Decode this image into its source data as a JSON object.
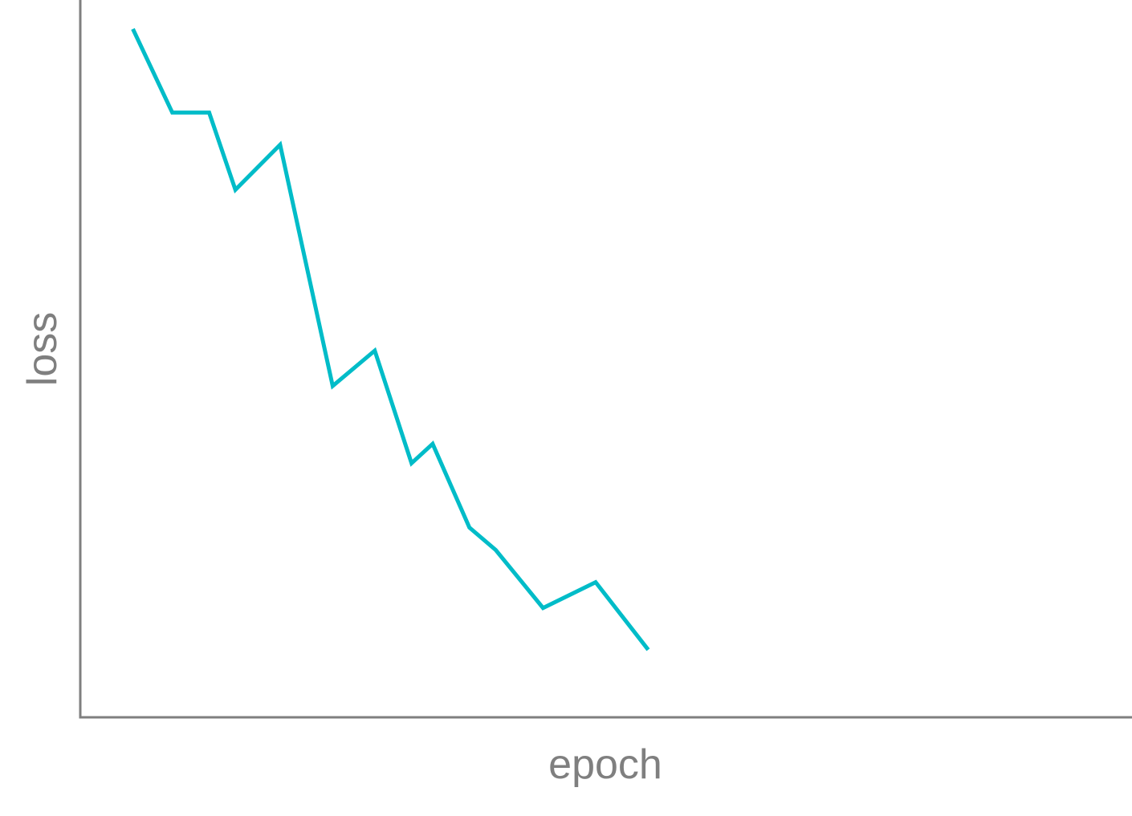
{
  "chart_data": {
    "type": "line",
    "xlabel": "epoch",
    "ylabel": "loss",
    "xlim": [
      0,
      20
    ],
    "ylim": [
      0,
      22.3
    ],
    "grid": false,
    "legend": "none",
    "series": [
      {
        "color": "#00bcc8",
        "x": [
          1,
          1.75,
          2.45,
          2.95,
          3.8,
          4.8,
          5.6,
          6.3,
          6.7,
          7.4,
          7.9,
          8.8,
          9.8,
          10.8
        ],
        "y": [
          21.4,
          18.8,
          18.8,
          16.4,
          17.8,
          10.3,
          11.4,
          7.9,
          8.5,
          5.9,
          5.2,
          3.4,
          4.2,
          2.1
        ]
      }
    ]
  }
}
